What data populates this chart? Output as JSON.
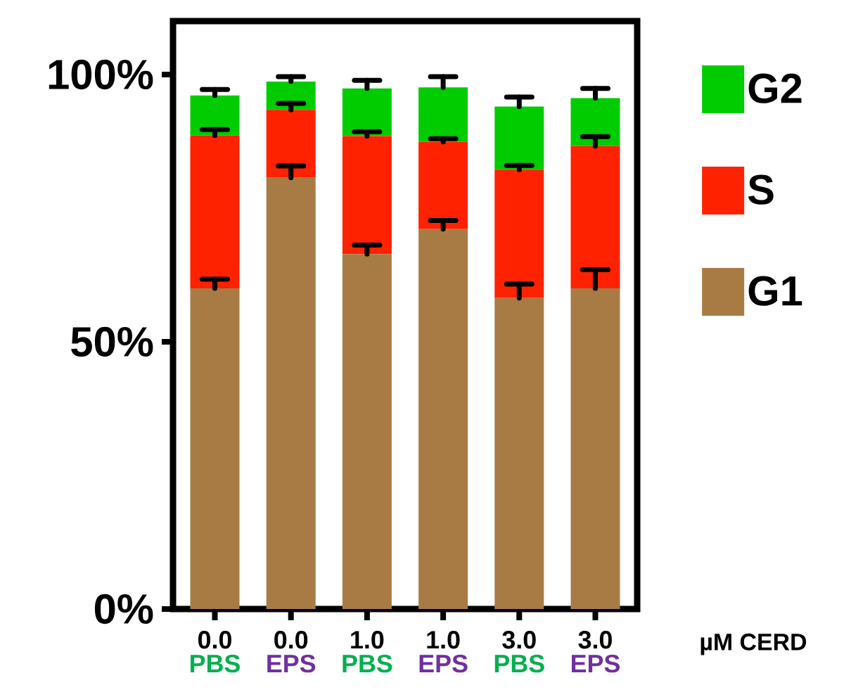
{
  "chart_data": {
    "type": "bar",
    "stacked": true,
    "xlabel": "µM CERD",
    "categories": [
      "0.0",
      "0.0",
      "1.0",
      "1.0",
      "3.0",
      "3.0"
    ],
    "annotations": [
      "PBS",
      "EPS",
      "PBS",
      "EPS",
      "PBS",
      "EPS"
    ],
    "series": [
      {
        "name": "G1",
        "color": "#a97b44",
        "values": [
          60.0,
          80.7,
          66.4,
          71.1,
          58.2,
          60.0
        ],
        "errors": [
          [
            60.0,
            61.7
          ],
          [
            80.7,
            82.9
          ],
          [
            66.4,
            68.1
          ],
          [
            71.1,
            72.7
          ],
          [
            58.2,
            60.8
          ],
          [
            60.0,
            63.5
          ]
        ]
      },
      {
        "name": "S",
        "color": "#ff2200",
        "values": [
          28.6,
          12.7,
          22.1,
          16.3,
          24.0,
          26.6
        ],
        "errors": [
          [
            88.6,
            89.7
          ],
          [
            93.4,
            94.6
          ],
          [
            88.5,
            89.3
          ],
          [
            87.4,
            88.0
          ],
          [
            82.2,
            83.0
          ],
          [
            86.6,
            88.4
          ]
        ]
      },
      {
        "name": "G2",
        "color": "#00cc00",
        "values": [
          7.5,
          5.3,
          8.9,
          10.2,
          11.8,
          9.0
        ],
        "errors": [
          [
            96.1,
            97.2
          ],
          [
            98.7,
            99.6
          ],
          [
            97.4,
            98.9
          ],
          [
            97.6,
            99.6
          ],
          [
            94.0,
            95.8
          ],
          [
            95.6,
            97.4
          ]
        ]
      }
    ],
    "ylim": [
      0,
      110
    ],
    "yticks": [
      {
        "value": 0,
        "label": "0%"
      },
      {
        "value": 50,
        "label": "50%"
      },
      {
        "value": 100,
        "label": "100%"
      }
    ],
    "legend": "right",
    "grid": false
  }
}
